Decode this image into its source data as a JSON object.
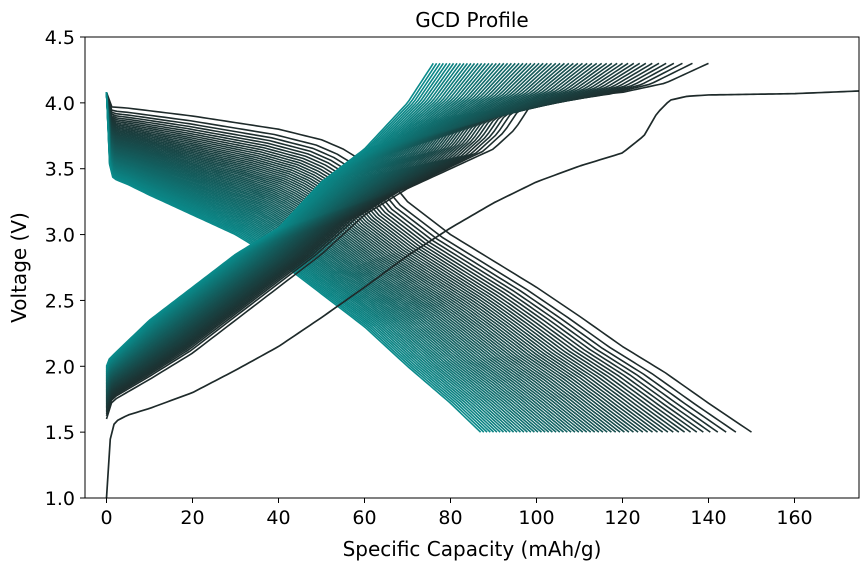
{
  "chart_data": {
    "type": "line",
    "title": "GCD Profile",
    "xlabel": "Specific Capacity (mAh/g)",
    "ylabel": "Voltage (V)",
    "xlim": [
      -5,
      175
    ],
    "ylim": [
      1.0,
      4.5
    ],
    "xticks": [
      0,
      20,
      40,
      60,
      80,
      100,
      120,
      140,
      160
    ],
    "yticks": [
      1.0,
      1.5,
      2.0,
      2.5,
      3.0,
      3.5,
      4.0,
      4.5
    ],
    "xtick_labels": [
      "0",
      "20",
      "40",
      "60",
      "80",
      "100",
      "120",
      "140",
      "160"
    ],
    "ytick_labels": [
      "1.0",
      "1.5",
      "2.0",
      "2.5",
      "3.0",
      "3.5",
      "4.0",
      "4.5"
    ],
    "grid": false,
    "legend": "none",
    "colors": {
      "first_cycle": "#1e2a2a",
      "last_cycle": "#0a8a8a"
    },
    "series": [
      {
        "cycle": 1,
        "step": "charge",
        "x": [
          0,
          0.3,
          1,
          2,
          5,
          10,
          20,
          30,
          40,
          50,
          60,
          70,
          80,
          90,
          100,
          110,
          120,
          125,
          128,
          131,
          135,
          140,
          150,
          160,
          175
        ],
        "y": [
          1.0,
          1.2,
          1.5,
          1.58,
          1.63,
          1.68,
          1.8,
          1.97,
          2.15,
          2.37,
          2.6,
          2.84,
          3.05,
          3.24,
          3.4,
          3.52,
          3.62,
          3.75,
          3.92,
          4.02,
          4.05,
          4.06,
          4.065,
          4.07,
          4.09
        ]
      },
      {
        "cycle": 2,
        "step": "charge",
        "x": [
          0,
          0.5,
          2,
          10,
          20,
          30,
          40,
          50,
          55,
          60,
          70,
          80,
          90,
          95,
          98,
          100,
          103,
          110,
          120,
          130,
          140
        ],
        "y": [
          1.6,
          1.7,
          1.75,
          1.9,
          2.1,
          2.35,
          2.6,
          2.85,
          3.0,
          3.15,
          3.35,
          3.5,
          3.65,
          3.8,
          3.95,
          4.0,
          4.03,
          4.05,
          4.08,
          4.15,
          4.3
        ]
      },
      {
        "cycle": 60,
        "step": "charge",
        "x": [
          0,
          0.5,
          2,
          10,
          20,
          30,
          40,
          50,
          60,
          70,
          76
        ],
        "y": [
          2.0,
          2.05,
          2.1,
          2.35,
          2.6,
          2.85,
          3.05,
          3.4,
          3.65,
          4.0,
          4.3
        ]
      },
      {
        "cycle": 1,
        "step": "discharge",
        "x": [
          0,
          0.5,
          1,
          5,
          20,
          40,
          50,
          55,
          60,
          65,
          70,
          80,
          90,
          100,
          110,
          120,
          130,
          140,
          150
        ],
        "y": [
          4.08,
          3.98,
          3.97,
          3.96,
          3.9,
          3.8,
          3.72,
          3.65,
          3.55,
          3.45,
          3.25,
          3.0,
          2.8,
          2.6,
          2.38,
          2.15,
          1.95,
          1.72,
          1.5
        ]
      },
      {
        "cycle": 60,
        "step": "discharge",
        "x": [
          0,
          0.5,
          1,
          2,
          5,
          10,
          20,
          30,
          40,
          50,
          60,
          70,
          80,
          87
        ],
        "y": [
          4.08,
          3.6,
          3.45,
          3.42,
          3.38,
          3.3,
          3.15,
          3.0,
          2.8,
          2.55,
          2.3,
          2.0,
          1.72,
          1.5
        ]
      }
    ]
  }
}
